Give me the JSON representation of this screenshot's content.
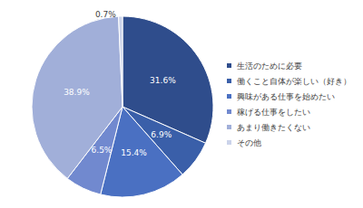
{
  "chart_data": {
    "type": "pie",
    "categories": [
      "生活のために必要",
      "働くこと自体が楽しい（好き）",
      "興味がある仕事を始めたい",
      "稼げる仕事をしたい",
      "あまり働きたくない",
      "その他"
    ],
    "values": [
      31.6,
      6.9,
      15.4,
      6.5,
      38.9,
      0.7
    ],
    "value_labels": [
      "31.6%",
      "6.9%",
      "15.4%",
      "6.5%",
      "38.9%",
      "0.7%"
    ],
    "colors": [
      "#2f4d8c",
      "#3a5fa9",
      "#4a70c2",
      "#7189cf",
      "#a1afd9",
      "#cbd3ea"
    ],
    "data_labels": true,
    "legend": "right"
  }
}
